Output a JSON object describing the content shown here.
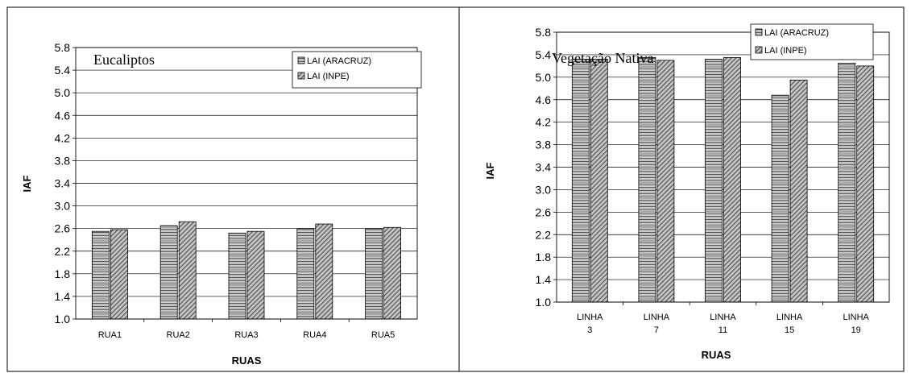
{
  "chart_data": [
    {
      "type": "bar",
      "title": "Eucaliptos",
      "xlabel": "RUAS",
      "ylabel": "IAF",
      "ylim": [
        1.0,
        5.8
      ],
      "yticks": [
        "1.0",
        "1.4",
        "1.8",
        "2.2",
        "2.6",
        "3.0",
        "3.4",
        "3.8",
        "4.2",
        "4.6",
        "5.0",
        "5.4",
        "5.8"
      ],
      "categories": [
        [
          "RUA1"
        ],
        [
          "RUA2"
        ],
        [
          "RUA3"
        ],
        [
          "RUA4"
        ],
        [
          "RUA5"
        ]
      ],
      "series": [
        {
          "name": "LAI (ARACRUZ)",
          "values": [
            2.55,
            2.65,
            2.52,
            2.6,
            2.6
          ]
        },
        {
          "name": "LAI (INPE)",
          "values": [
            2.58,
            2.72,
            2.55,
            2.68,
            2.62
          ]
        }
      ],
      "grid": true,
      "legend_position": "top-right"
    },
    {
      "type": "bar",
      "title": "Vegetação Nativa",
      "xlabel": "RUAS",
      "ylabel": "IAF",
      "ylim": [
        1.0,
        5.8
      ],
      "yticks": [
        "1.0",
        "1.4",
        "1.8",
        "2.2",
        "2.6",
        "3.0",
        "3.4",
        "3.8",
        "4.2",
        "4.6",
        "5.0",
        "5.4",
        "5.8"
      ],
      "categories": [
        [
          "LINHA",
          "3"
        ],
        [
          "LINHA",
          "7"
        ],
        [
          "LINHA",
          "11"
        ],
        [
          "LINHA",
          "15"
        ],
        [
          "LINHA",
          "19"
        ]
      ],
      "series": [
        {
          "name": "LAI (ARACRUZ)",
          "values": [
            5.32,
            5.35,
            5.32,
            4.68,
            5.25
          ]
        },
        {
          "name": "LAI (INPE)",
          "values": [
            5.32,
            5.3,
            5.35,
            4.95,
            5.2
          ]
        }
      ],
      "grid": true,
      "legend_position": "top-right"
    }
  ]
}
